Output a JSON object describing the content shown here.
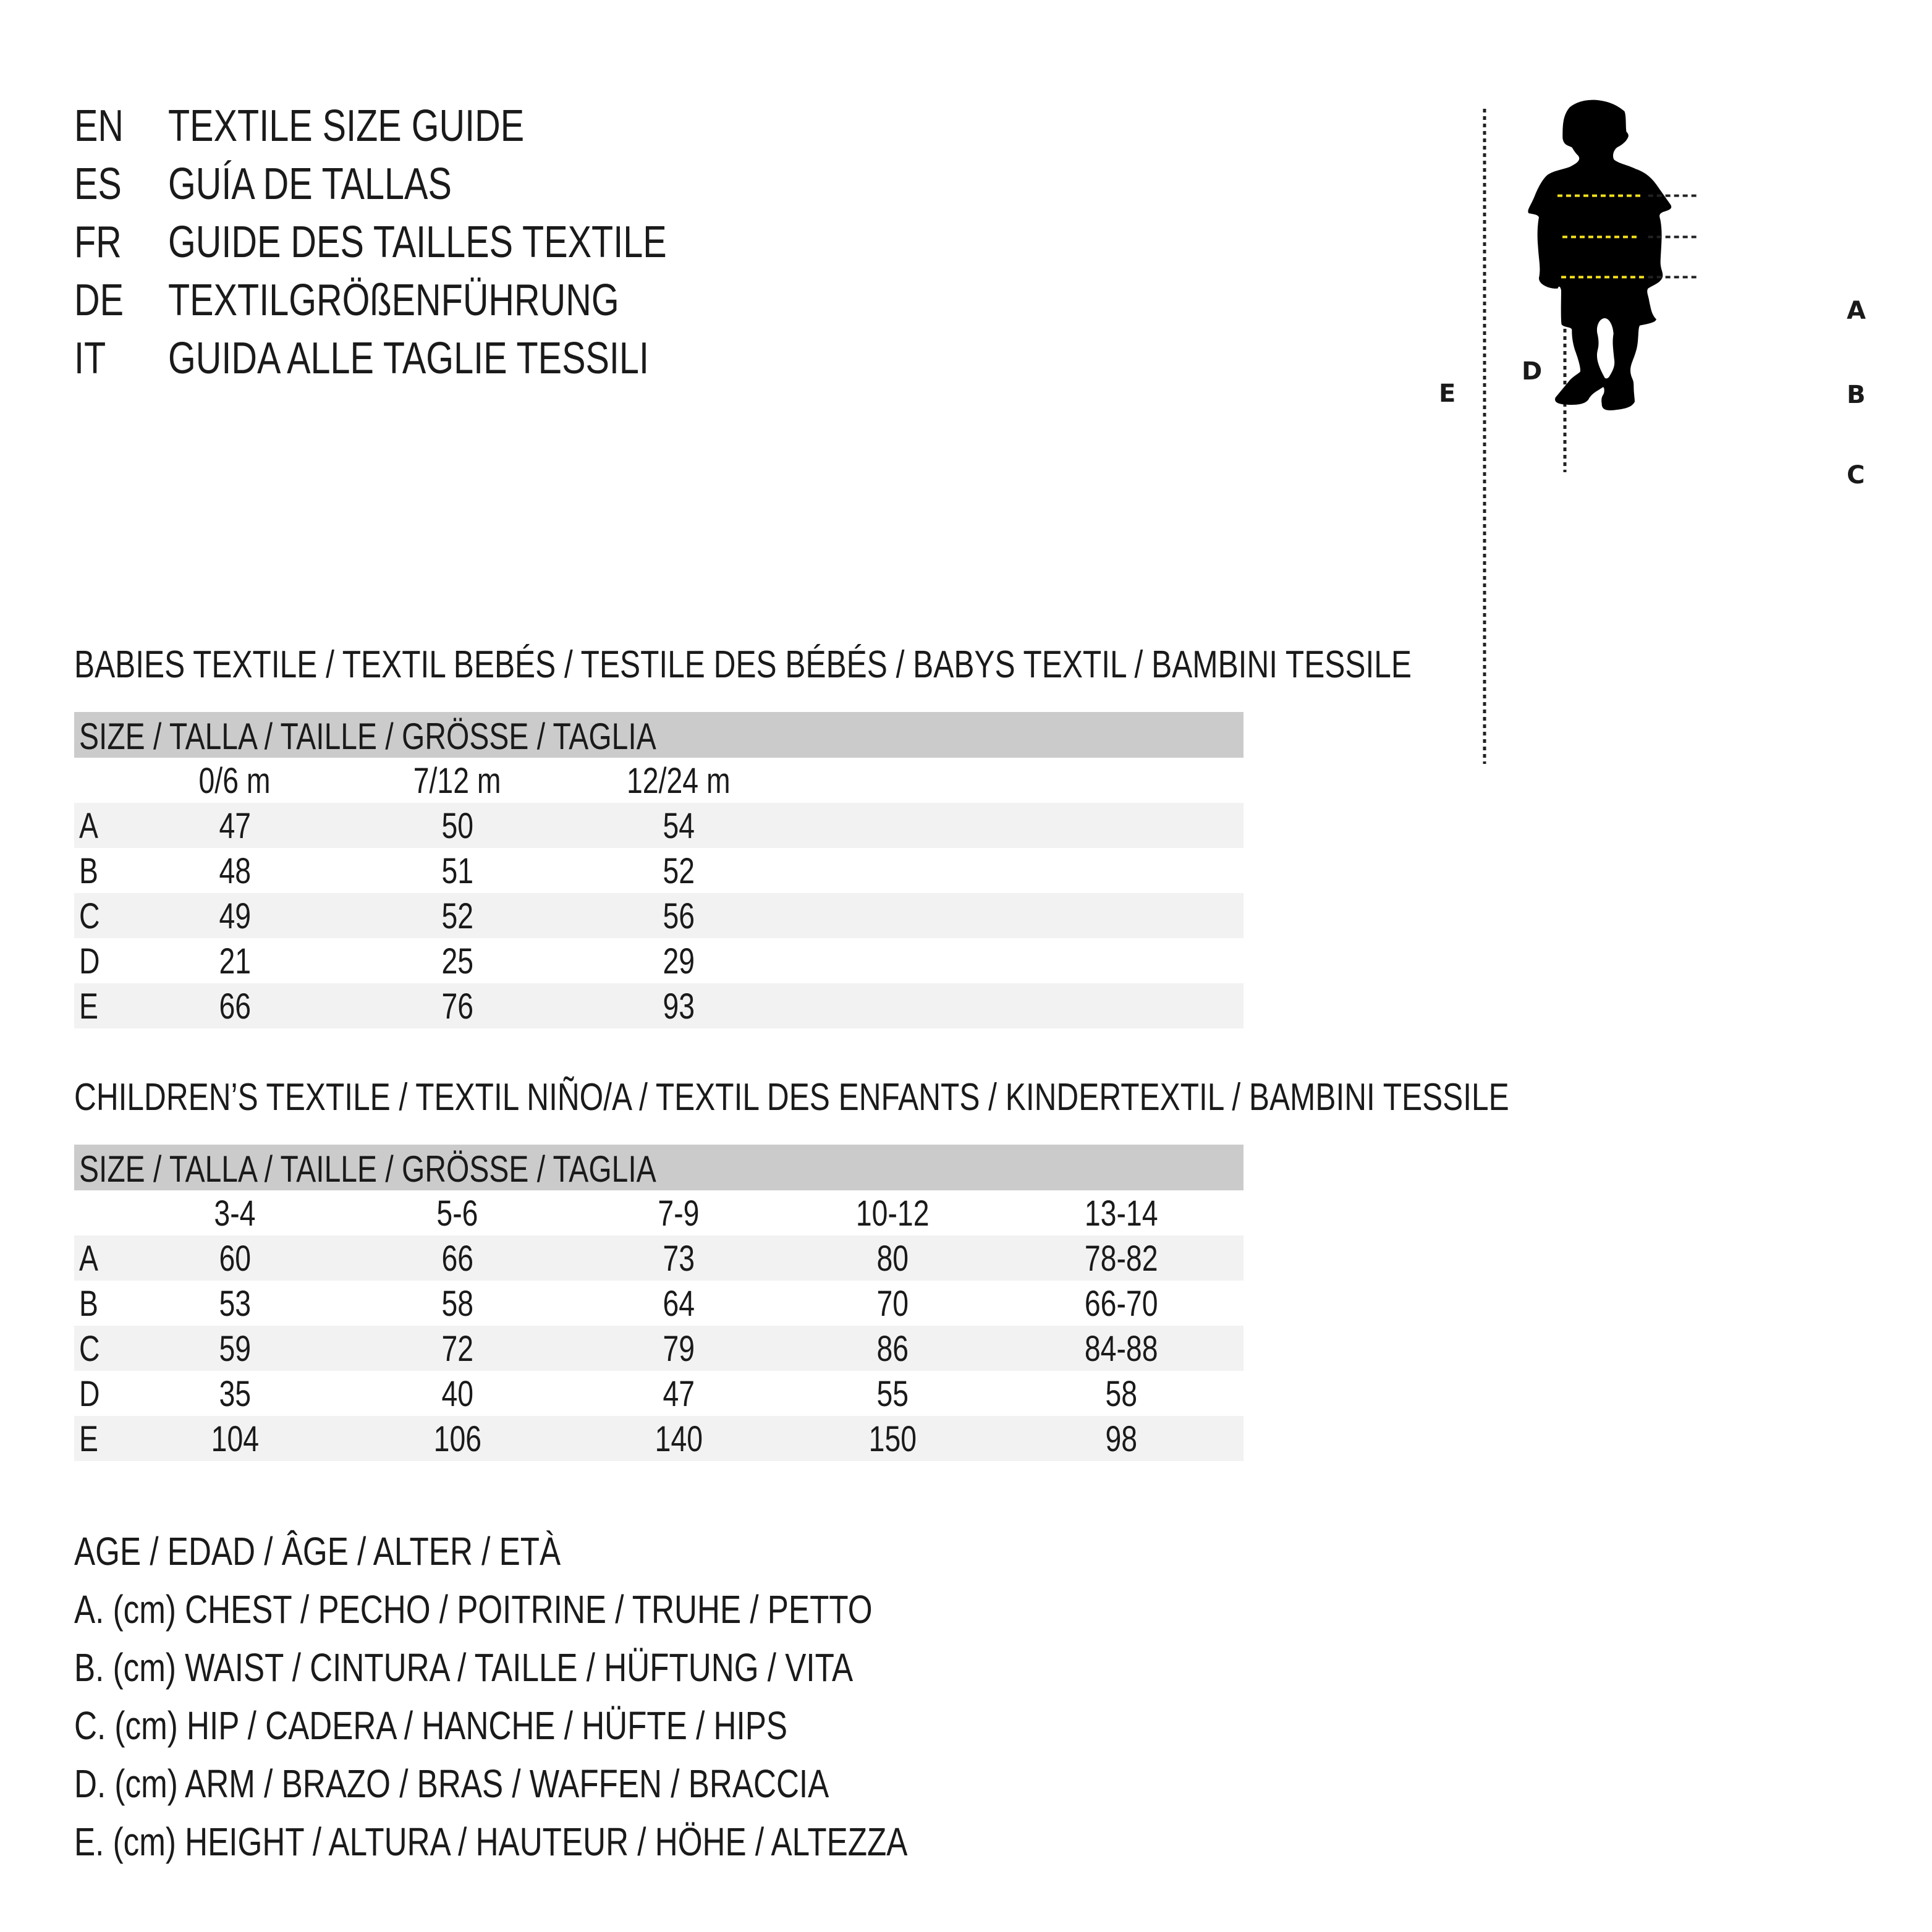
{
  "header": {
    "languages": [
      {
        "code": "EN",
        "title": "TEXTILE SIZE GUIDE"
      },
      {
        "code": "ES",
        "title": "GUÍA DE TALLAS"
      },
      {
        "code": "FR",
        "title": "GUIDE DES TAILLES TEXTILE"
      },
      {
        "code": "DE",
        "title": "TEXTILGRÖßENFÜHRUNG"
      },
      {
        "code": "IT",
        "title": "GUIDA ALLE TAGLIE TESSILI"
      }
    ]
  },
  "figure": {
    "labels": {
      "a": "A",
      "b": "B",
      "c": "C",
      "d": "D",
      "e": "E"
    },
    "colors": {
      "silhouette": "#000000",
      "measure_line": "#f5e11a",
      "guide_line": "#222222"
    }
  },
  "babies": {
    "title": "BABIES TEXTILE / TEXTIL BEBÉS / TESTILE DES BÉBÉS / BABYS TEXTIL / BAMBINI TESSILE",
    "size_header": "SIZE / TALLA / TAILLE / GRÖSSE / TAGLIA",
    "columns": [
      "0/6 m",
      "7/12 m",
      "12/24 m"
    ],
    "rows": [
      {
        "label": "A",
        "values": [
          "47",
          "50",
          "54"
        ]
      },
      {
        "label": "B",
        "values": [
          "48",
          "51",
          "52"
        ]
      },
      {
        "label": "C",
        "values": [
          "49",
          "52",
          "56"
        ]
      },
      {
        "label": "D",
        "values": [
          "21",
          "25",
          "29"
        ]
      },
      {
        "label": "E",
        "values": [
          "66",
          "76",
          "93"
        ]
      }
    ]
  },
  "children": {
    "title": "CHILDREN’S TEXTILE / TEXTIL NIÑO/A / TEXTIL DES ENFANTS / KINDERTEXTIL / BAMBINI TESSILE",
    "size_header": "SIZE / TALLA / TAILLE / GRÖSSE / TAGLIA",
    "columns": [
      "3-4",
      "5-6",
      "7-9",
      "10-12",
      "13-14"
    ],
    "rows": [
      {
        "label": "A",
        "values": [
          "60",
          "66",
          "73",
          "80",
          "78-82"
        ]
      },
      {
        "label": "B",
        "values": [
          "53",
          "58",
          "64",
          "70",
          "66-70"
        ]
      },
      {
        "label": "C",
        "values": [
          "59",
          "72",
          "79",
          "86",
          "84-88"
        ]
      },
      {
        "label": "D",
        "values": [
          "35",
          "40",
          "47",
          "55",
          "58"
        ]
      },
      {
        "label": "E",
        "values": [
          "104",
          "106",
          "140",
          "150",
          "98"
        ]
      }
    ]
  },
  "legend": [
    "AGE / EDAD / ÂGE / ALTER / ETÀ",
    "A. (cm) CHEST / PECHO / POITRINE / TRUHE / PETTO",
    "B. (cm) WAIST / CINTURA / TAILLE / HÜFTUNG / VITA",
    "C. (cm) HIP / CADERA / HANCHE / HÜFTE / HIPS",
    "D. (cm) ARM / BRAZO / BRAS / WAFFEN / BRACCIA",
    "E. (cm) HEIGHT / ALTURA / HAUTEUR / HÖHE / ALTEZZA"
  ]
}
